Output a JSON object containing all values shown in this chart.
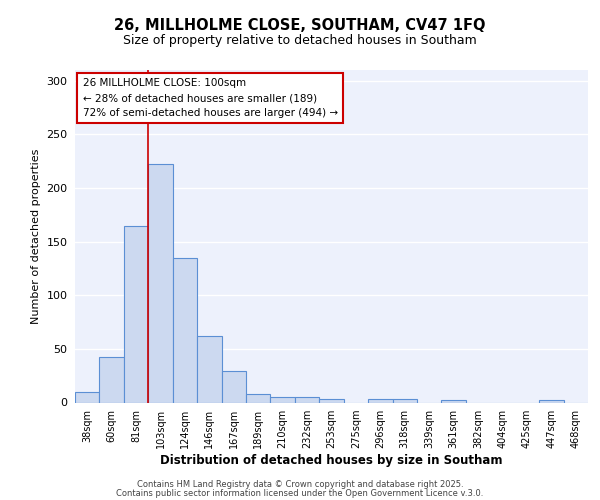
{
  "title_line1": "26, MILLHOLME CLOSE, SOUTHAM, CV47 1FQ",
  "title_line2": "Size of property relative to detached houses in Southam",
  "xlabel": "Distribution of detached houses by size in Southam",
  "ylabel": "Number of detached properties",
  "categories": [
    "38sqm",
    "60sqm",
    "81sqm",
    "103sqm",
    "124sqm",
    "146sqm",
    "167sqm",
    "189sqm",
    "210sqm",
    "232sqm",
    "253sqm",
    "275sqm",
    "296sqm",
    "318sqm",
    "339sqm",
    "361sqm",
    "382sqm",
    "404sqm",
    "425sqm",
    "447sqm",
    "468sqm"
  ],
  "values": [
    10,
    42,
    165,
    222,
    135,
    62,
    29,
    8,
    5,
    5,
    3,
    0,
    3,
    3,
    0,
    2,
    0,
    0,
    0,
    2,
    0
  ],
  "bar_color": "#ccd9f0",
  "bar_edge_color": "#5b8fd4",
  "vline_color": "#cc0000",
  "annotation_title": "26 MILLHOLME CLOSE: 100sqm",
  "annotation_line2": "← 28% of detached houses are smaller (189)",
  "annotation_line3": "72% of semi-detached houses are larger (494) →",
  "annotation_box_edgecolor": "#cc0000",
  "ylim": [
    0,
    310
  ],
  "yticks": [
    0,
    50,
    100,
    150,
    200,
    250,
    300
  ],
  "footnote1": "Contains HM Land Registry data © Crown copyright and database right 2025.",
  "footnote2": "Contains public sector information licensed under the Open Government Licence v.3.0.",
  "background_color": "#edf1fc",
  "grid_color": "#ffffff",
  "fig_bg_color": "#ffffff"
}
